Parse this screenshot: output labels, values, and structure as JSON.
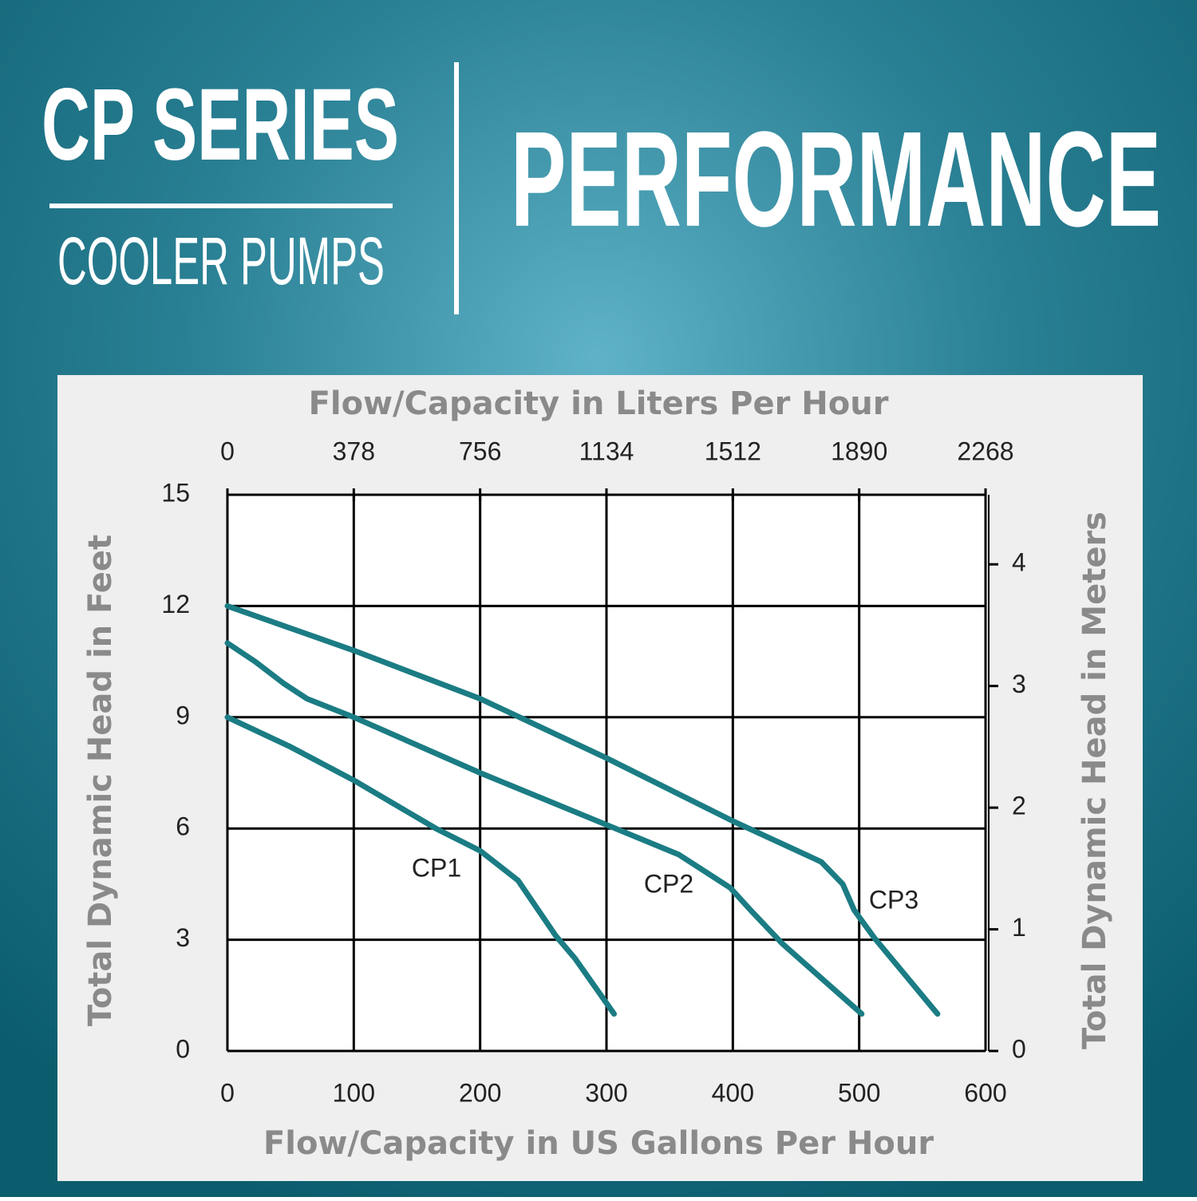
{
  "header": {
    "title": "CP SERIES",
    "subtitle": "COOLER PUMPS",
    "heading": "PERFORMANCE"
  },
  "chart_data": {
    "type": "line",
    "xlabel": "Flow/Capacity in US Gallons Per Hour",
    "x2label": "Flow/Capacity in Liters Per Hour",
    "ylabel": "Total Dynamic Head in Feet",
    "y2label": "Total Dynamic Head in Meters",
    "xlim": [
      0,
      600
    ],
    "xticks": [
      0,
      100,
      200,
      300,
      400,
      500,
      600
    ],
    "x2lim": [
      0,
      2268
    ],
    "x2ticks": [
      0,
      378,
      756,
      1134,
      1512,
      1890,
      2268
    ],
    "ylim": [
      0,
      15
    ],
    "yticks": [
      0,
      3,
      6,
      9,
      12,
      15
    ],
    "y2lim": [
      0,
      4.572
    ],
    "y2ticks": [
      0,
      1,
      2,
      3,
      4
    ],
    "grid": true,
    "series": [
      {
        "name": "CP1",
        "color": "#1b7c84",
        "x": [
          0,
          50,
          100,
          165,
          200,
          230,
          240,
          260,
          275,
          306
        ],
        "values": [
          9,
          8.2,
          7.3,
          6,
          5.4,
          4.6,
          4.1,
          3.1,
          2.5,
          1
        ]
      },
      {
        "name": "CP2",
        "color": "#1b7c84",
        "x": [
          0,
          22,
          45,
          63,
          100,
          200,
          300,
          357,
          398,
          414,
          439,
          502
        ],
        "values": [
          11,
          10.5,
          9.9,
          9.5,
          9,
          7.5,
          6.1,
          5.3,
          4.4,
          3.8,
          2.9,
          1
        ]
      },
      {
        "name": "CP3",
        "color": "#1b7c84",
        "x": [
          0,
          100,
          200,
          300,
          400,
          470,
          487,
          496,
          512,
          562
        ],
        "values": [
          12,
          10.8,
          9.5,
          7.9,
          6.2,
          5.1,
          4.5,
          3.8,
          3.05,
          1
        ]
      }
    ]
  }
}
